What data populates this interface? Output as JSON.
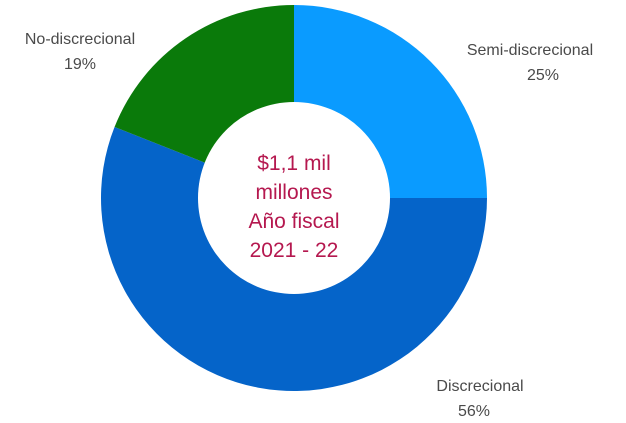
{
  "chart_data": {
    "type": "pie",
    "donut": true,
    "center_label": [
      "$1,1 mil",
      "millones",
      "Año fiscal",
      "2021 - 22"
    ],
    "slices": [
      {
        "name": "Semi-discrecional",
        "value": 25,
        "value_label": "25%",
        "color": "#0a9bff"
      },
      {
        "name": "Discrecional",
        "value": 56,
        "value_label": "56%",
        "color": "#0564c9"
      },
      {
        "name": "No-discrecional",
        "value": 19,
        "value_label": "19%",
        "color": "#0a7a0a"
      }
    ],
    "start_angle_deg": 0,
    "direction": "clockwise"
  }
}
